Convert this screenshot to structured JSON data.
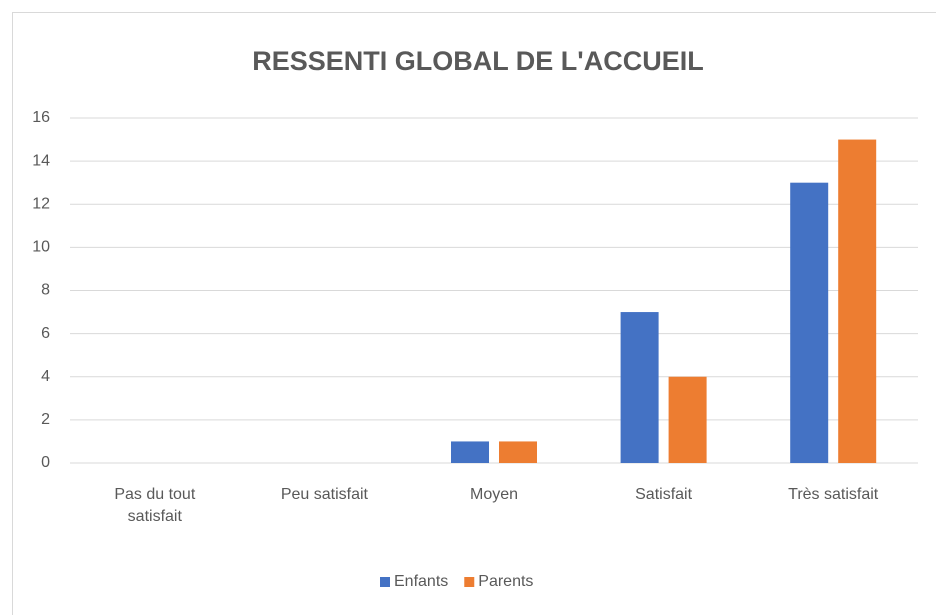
{
  "chart_data": {
    "type": "bar",
    "title": "RESSENTI GLOBAL DE L'ACCUEIL",
    "categories": [
      "Pas du tout satisfait",
      "Peu satisfait",
      "Moyen",
      "Satisfait",
      "Très satisfait"
    ],
    "series": [
      {
        "name": "Enfants",
        "color": "#4472c4",
        "values": [
          0,
          0,
          1,
          7,
          13
        ]
      },
      {
        "name": "Parents",
        "color": "#ed7d31",
        "values": [
          0,
          0,
          1,
          4,
          15
        ]
      }
    ],
    "ylim": [
      0,
      16
    ],
    "yticks": [
      0,
      2,
      4,
      6,
      8,
      10,
      12,
      14,
      16
    ],
    "grid": true,
    "legend": "bottom"
  }
}
